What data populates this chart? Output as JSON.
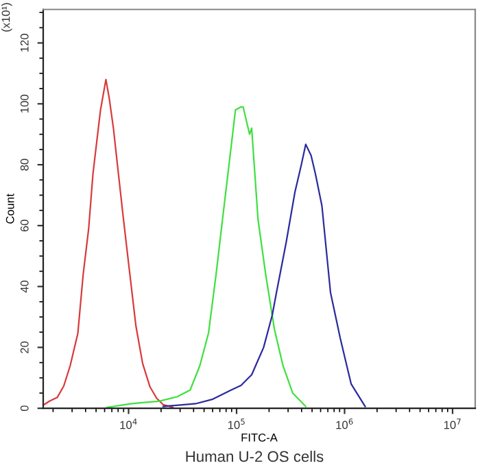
{
  "chart_data": {
    "type": "line",
    "xlabel": "FITC-A",
    "ylabel": "Count",
    "annotations": [
      "(x10¹)",
      "Human U-2 OS cells"
    ],
    "log": "x",
    "grid": false,
    "legend": false,
    "marker": "none",
    "line_style": "solid",
    "xlim": [
      1620,
      16200000
    ],
    "ylim": [
      0,
      131
    ],
    "xticks": [
      {
        "value": 10000,
        "label": "10$^{4}$"
      },
      {
        "value": 100000,
        "label": "10$^{5}$"
      },
      {
        "value": 1000000,
        "label": "10$^{6}$"
      },
      {
        "value": 10000000,
        "label": "10$^{7}$"
      }
    ],
    "yticks": [
      0,
      20,
      40,
      60,
      80,
      100,
      120
    ],
    "series": [
      {
        "color": "#d83a3a",
        "x": [
          1620,
          1860,
          2190,
          2510,
          2880,
          3390,
          3800,
          4270,
          4680,
          5130,
          5500,
          6170,
          6610,
          7240,
          7940,
          8910,
          10200,
          11700,
          13500,
          15800,
          18200,
          20900,
          25700
        ],
        "values": [
          1,
          2.4,
          3.6,
          7.3,
          14,
          24.6,
          44,
          59,
          77,
          89,
          98,
          108,
          102,
          92,
          79,
          63,
          45,
          27,
          14.7,
          7,
          3.3,
          1.2,
          0.3
        ]
      },
      {
        "color": "#3ee03e",
        "x": [
          6310,
          10700,
          12900,
          19100,
          28200,
          37200,
          45700,
          55000,
          64600,
          74100,
          85100,
          97700,
          110000,
          115000,
          132000,
          138000,
          158000,
          186000,
          224000,
          269000,
          331000,
          437000
        ],
        "values": [
          0.3,
          1.5,
          1.8,
          2.3,
          3.8,
          6,
          14,
          24.7,
          44,
          62,
          80,
          98,
          99,
          99,
          90,
          92,
          62,
          44,
          26,
          14,
          5,
          0.6
        ]
      },
      {
        "color": "#2a2a9e",
        "x": [
          20900,
          41700,
          60300,
          89100,
          110000,
          138000,
          178000,
          214000,
          234000,
          288000,
          347000,
          398000,
          437000,
          490000,
          537000,
          617000,
          741000,
          912000,
          1150000,
          1550000
        ],
        "values": [
          0.6,
          1.5,
          3,
          6,
          7.5,
          11,
          20,
          30.6,
          38,
          54.5,
          71,
          80,
          86.7,
          83,
          77,
          66.5,
          38,
          23,
          8,
          0.6
        ]
      }
    ]
  }
}
